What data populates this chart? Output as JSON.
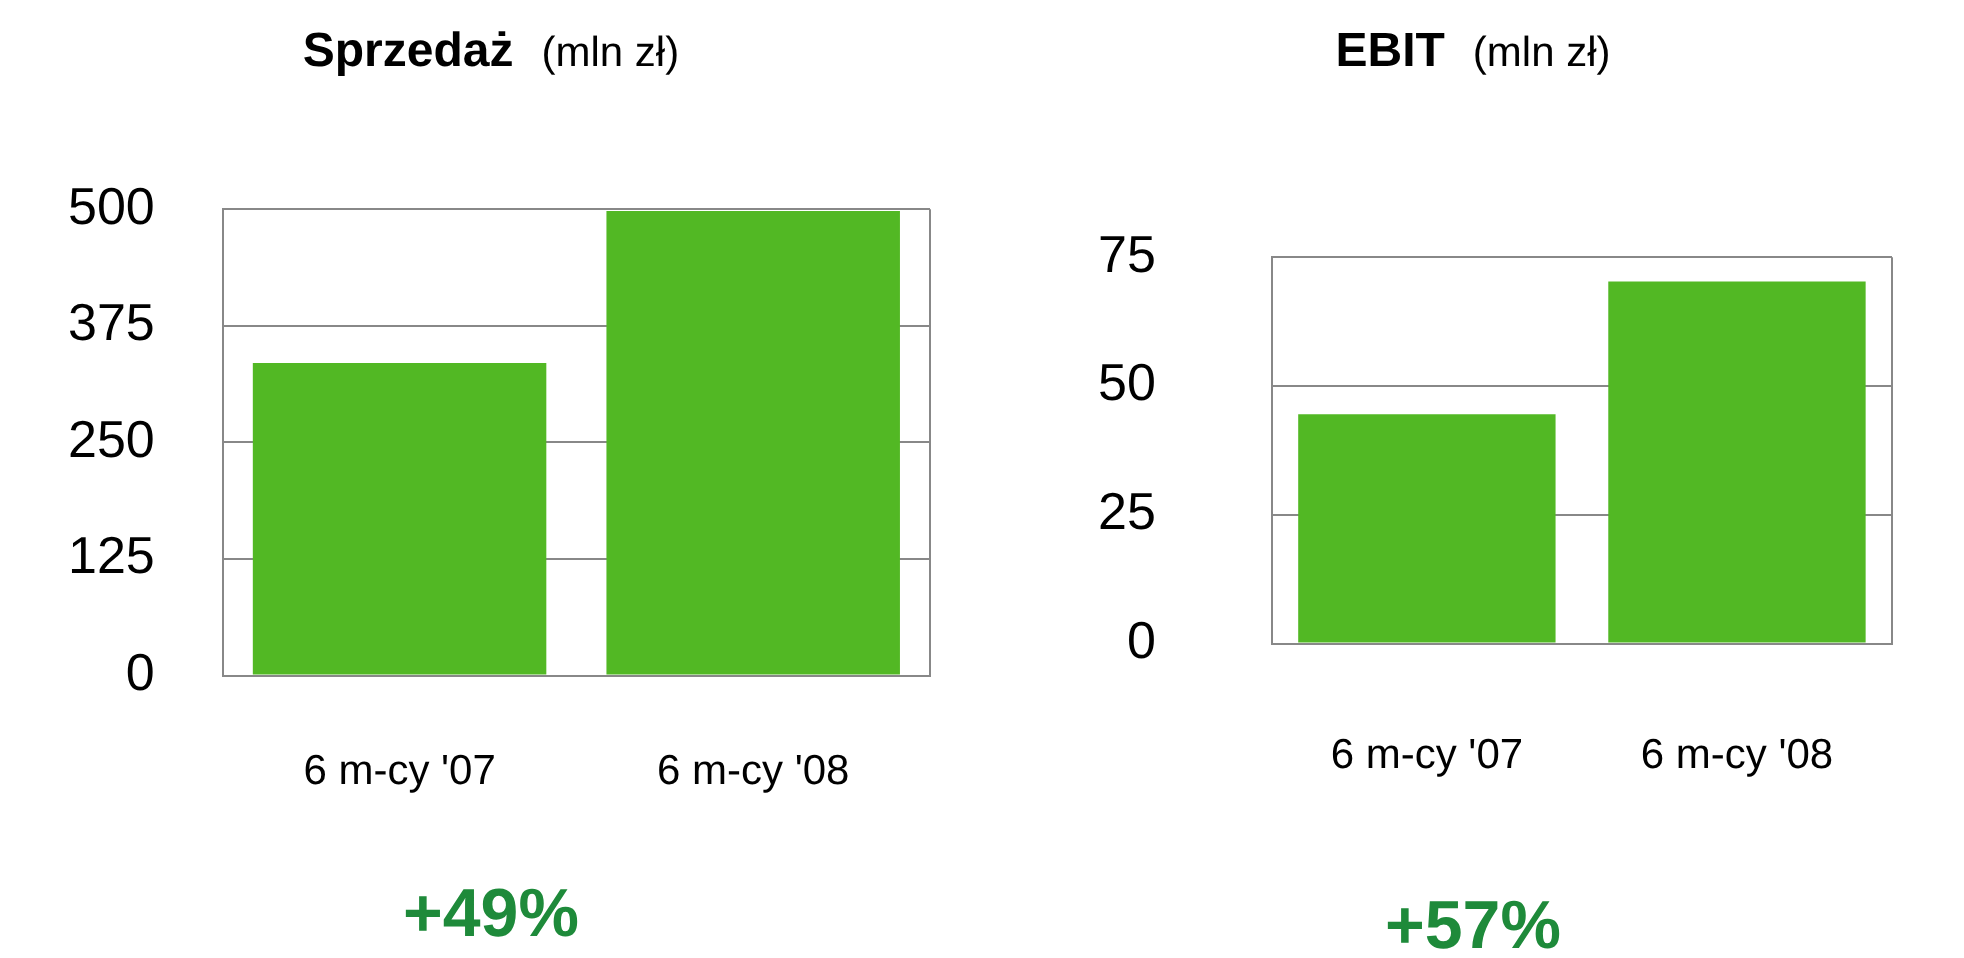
{
  "chart_data": [
    {
      "type": "bar",
      "title": "Sprzedaż",
      "subtitle": "(mln zł)",
      "categories": [
        "6 m-cy '07",
        "6 m-cy '08"
      ],
      "values": [
        335,
        498
      ],
      "color": "#52b824",
      "ylim": [
        0,
        500
      ],
      "yticks": [
        0,
        125,
        250,
        375,
        500
      ],
      "grid": "y",
      "annotations": [
        "+49%"
      ]
    },
    {
      "type": "bar",
      "title": "EBIT",
      "subtitle": "(mln zł)",
      "categories": [
        "6 m-cy '07",
        "6 m-cy '08"
      ],
      "values": [
        44.5,
        70.3
      ],
      "color": "#52b824",
      "ylim": [
        0,
        75
      ],
      "yticks": [
        0,
        25,
        50,
        75
      ],
      "grid": "y",
      "annotations": [
        "+57%"
      ]
    }
  ]
}
